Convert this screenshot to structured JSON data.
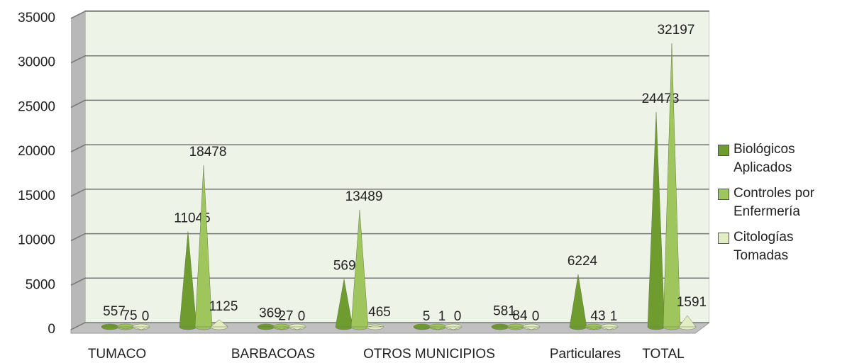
{
  "chart_data": {
    "type": "cone",
    "categories": [
      "TUMACO",
      null,
      "BARBACOAS",
      null,
      "OTROS MUNICIPIOS",
      null,
      "Particulares",
      "TOTAL"
    ],
    "series": [
      {
        "name": "Biológicos Aplicados",
        "color": "#6e9c2e",
        "values": [
          557,
          11045,
          369,
          5692,
          5,
          581,
          6224,
          24473
        ]
      },
      {
        "name": "Controles por Enfermería",
        "color": "#9fc65c",
        "values": [
          75,
          18478,
          27,
          13489,
          1,
          84,
          43,
          32197
        ]
      },
      {
        "name": "Citologías Tomadas",
        "color": "#e3edc4",
        "values": [
          0,
          1125,
          0,
          465,
          0,
          0,
          1,
          1591
        ]
      }
    ],
    "ylim": [
      0,
      35000
    ],
    "yticks": [
      0,
      5000,
      10000,
      15000,
      20000,
      25000,
      30000,
      35000
    ],
    "grid": true,
    "legend": "right"
  }
}
